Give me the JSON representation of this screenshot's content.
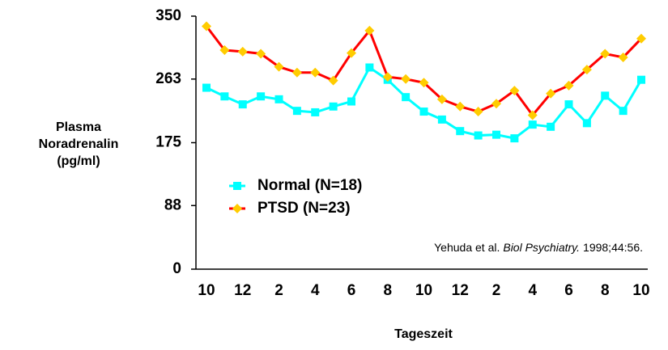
{
  "chart_data": {
    "type": "line",
    "ylabel": [
      "Plasma",
      "Noradrenalin",
      "(pg/ml)"
    ],
    "xlabel": "Tageszeit",
    "annotation": {
      "author": "Yehuda et al.",
      "journal": "Biol Psychiatry.",
      "ref": "1998;44:56."
    },
    "categories": [
      "10",
      null,
      "12",
      null,
      "2",
      null,
      "4",
      null,
      "6",
      null,
      "8",
      null,
      "10",
      null,
      "12",
      null,
      "2",
      null,
      "4",
      null,
      "6",
      null,
      "8",
      null,
      "10"
    ],
    "series": [
      {
        "name": "Normal (N=18)",
        "color": "#00ffff",
        "marker": "square",
        "values": [
          251,
          239,
          228,
          239,
          235,
          219,
          217,
          225,
          232,
          279,
          262,
          238,
          218,
          207,
          191,
          185,
          186,
          181,
          200,
          197,
          228,
          202,
          240,
          219,
          262
        ]
      },
      {
        "name": "PTSD (N=23)",
        "color": "#ff0000",
        "marker_color": "#ffcc00",
        "marker": "diamond",
        "values": [
          336,
          303,
          301,
          298,
          280,
          272,
          272,
          261,
          299,
          330,
          266,
          263,
          258,
          235,
          225,
          218,
          229,
          247,
          213,
          243,
          254,
          276,
          298,
          293,
          319
        ]
      }
    ],
    "ylim": [
      0,
      350
    ],
    "yticks": [
      0,
      88,
      175,
      263,
      350
    ]
  }
}
